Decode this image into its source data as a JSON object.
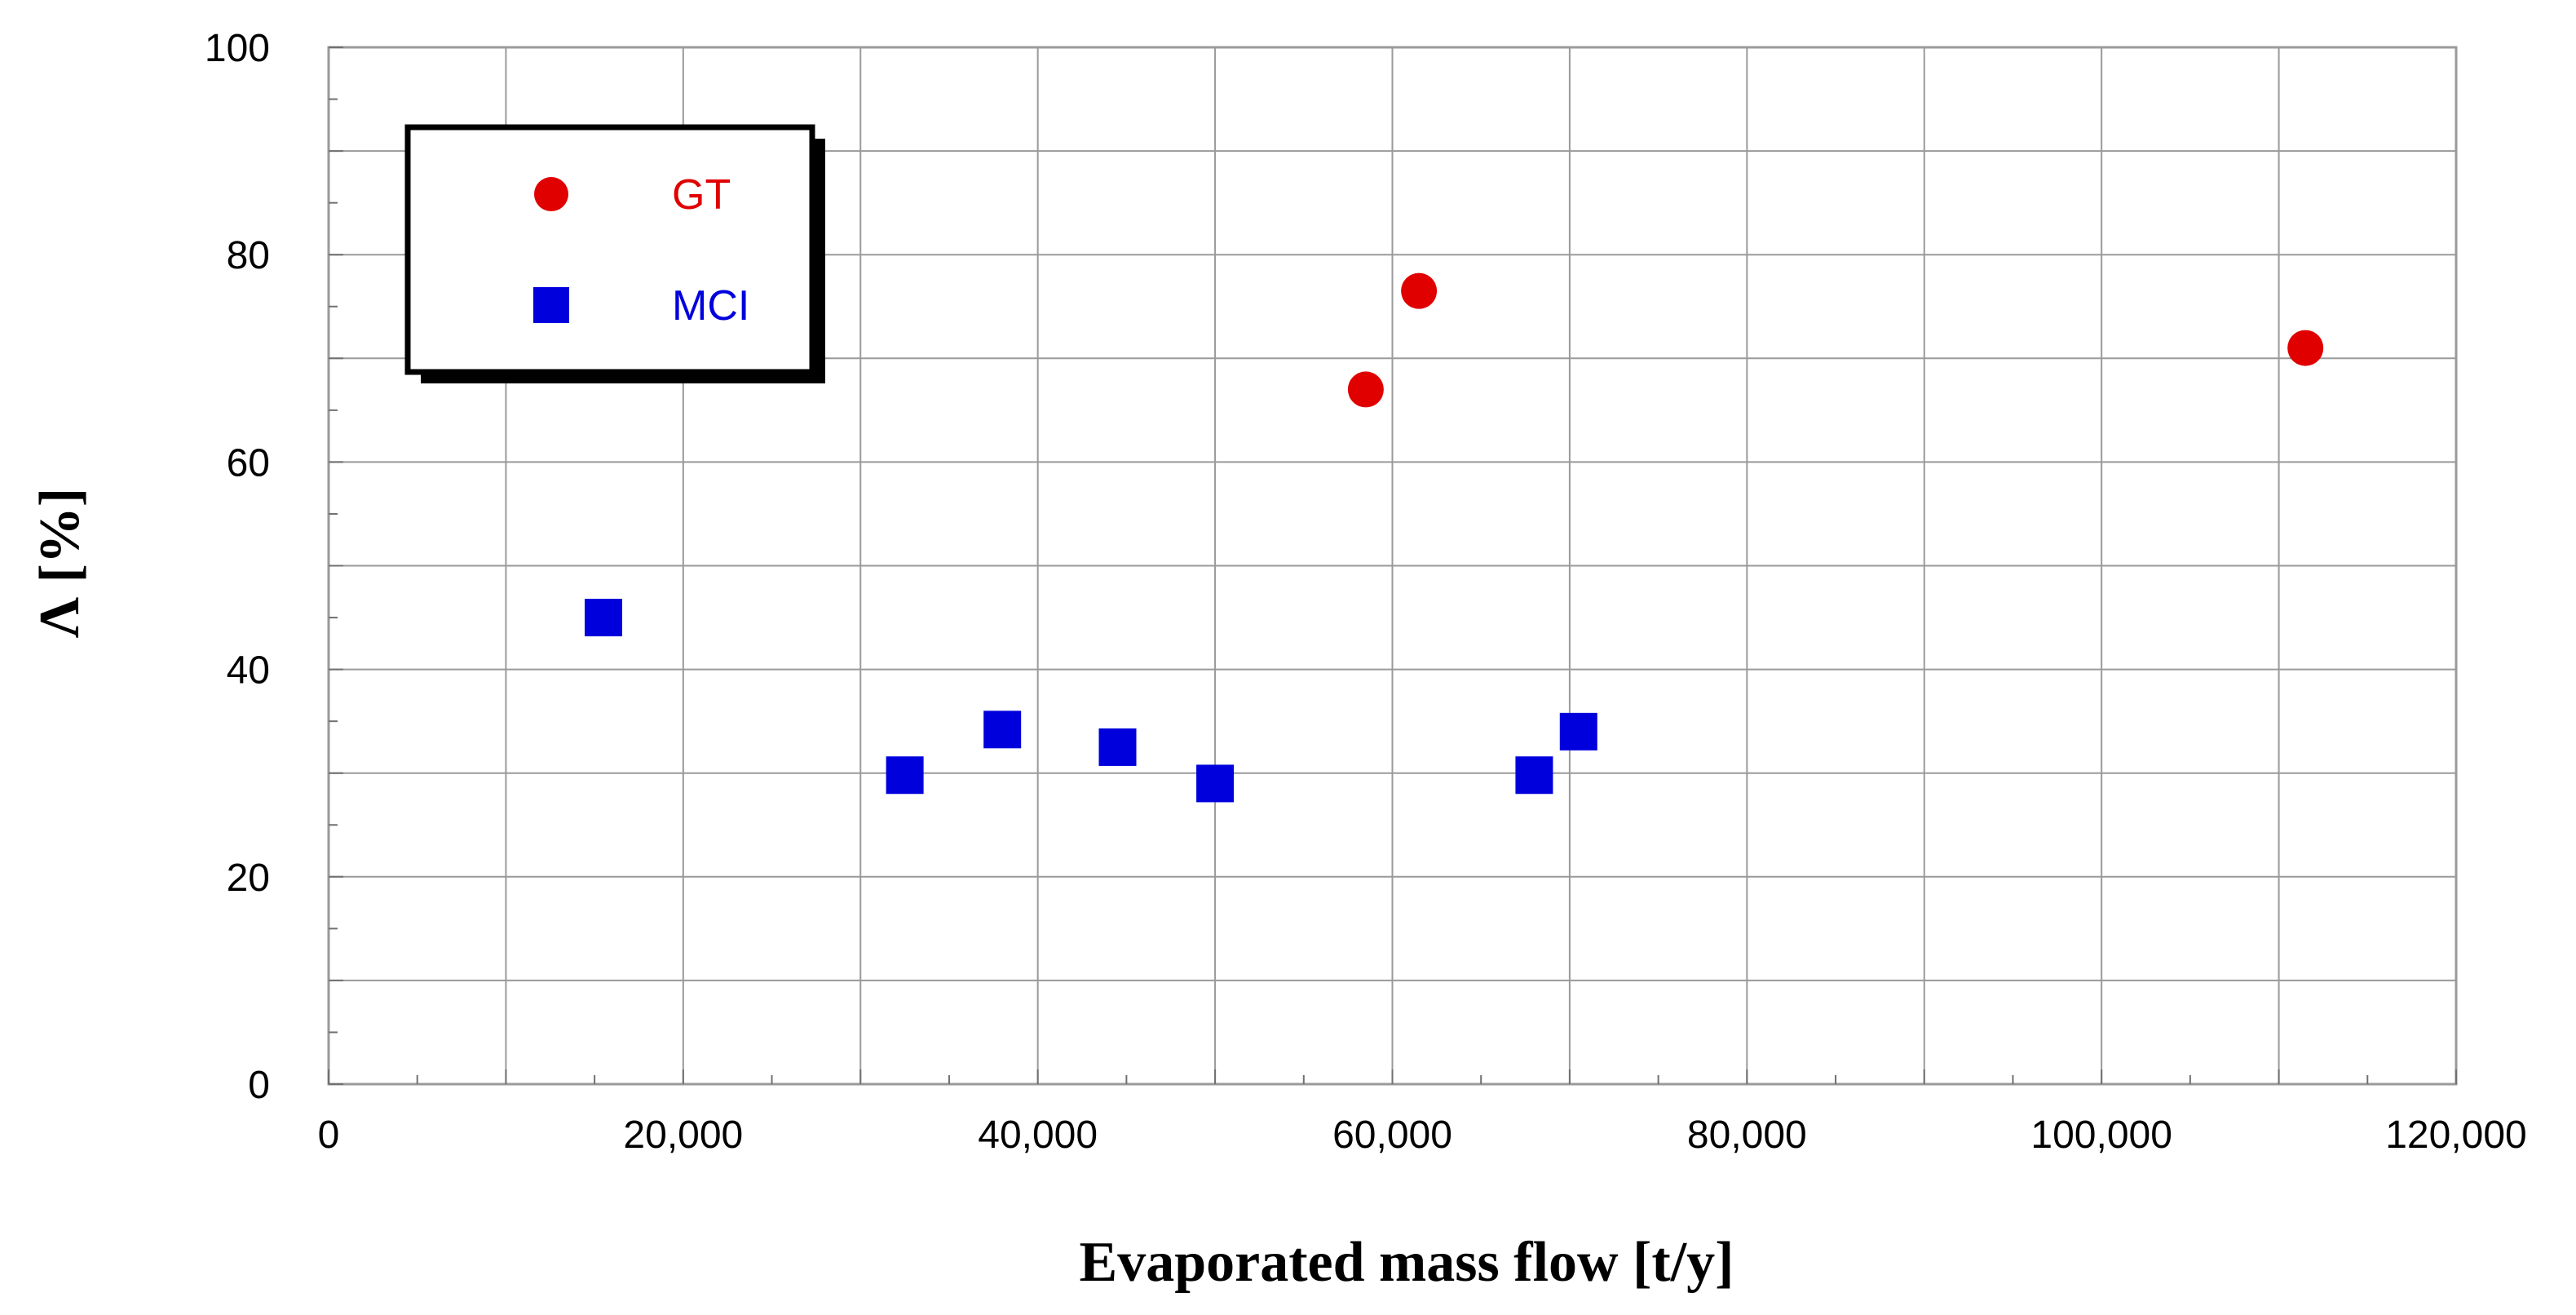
{
  "chart_data": {
    "type": "scatter",
    "title": "",
    "xlabel": "Evaporated mass flow [t/y]",
    "ylabel": "Λ [%]",
    "xlim": [
      0,
      120000
    ],
    "ylim": [
      0,
      100
    ],
    "x_ticks": [
      0,
      20000,
      40000,
      60000,
      80000,
      100000,
      120000
    ],
    "x_tick_labels": [
      "0",
      "20,000",
      "40,000",
      "60,000",
      "80,000",
      "100,000",
      "120,000"
    ],
    "y_ticks": [
      0,
      20,
      40,
      60,
      80,
      100
    ],
    "y_tick_labels": [
      "0",
      "20",
      "40",
      "60",
      "80",
      "100"
    ],
    "grid": true,
    "legend_position": "top-left",
    "series": [
      {
        "name": "GT",
        "marker": "circle",
        "color": "#e00000",
        "points": [
          {
            "x": 58500,
            "y": 67
          },
          {
            "x": 61500,
            "y": 76.5
          },
          {
            "x": 111500,
            "y": 71
          }
        ]
      },
      {
        "name": "MCI",
        "marker": "square",
        "color": "#0000dd",
        "points": [
          {
            "x": 15500,
            "y": 45
          },
          {
            "x": 32500,
            "y": 29.8
          },
          {
            "x": 38000,
            "y": 34.2
          },
          {
            "x": 44500,
            "y": 32.5
          },
          {
            "x": 50000,
            "y": 29
          },
          {
            "x": 68000,
            "y": 29.8
          },
          {
            "x": 70500,
            "y": 34
          }
        ]
      }
    ]
  }
}
